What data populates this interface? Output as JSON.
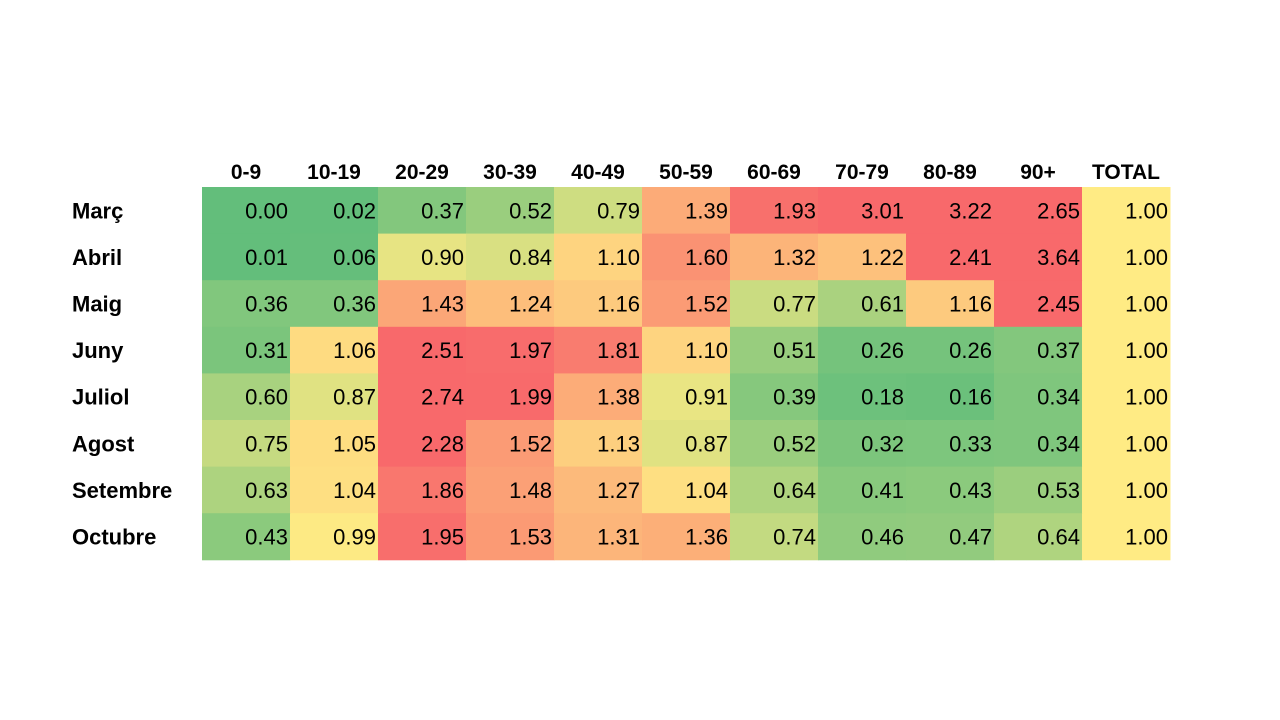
{
  "chart_data": {
    "type": "heatmap",
    "columns": [
      "0-9",
      "10-19",
      "20-29",
      "30-39",
      "40-49",
      "50-59",
      "60-69",
      "70-79",
      "80-89",
      "90+",
      "TOTAL"
    ],
    "rows": [
      "Març",
      "Abril",
      "Maig",
      "Juny",
      "Juliol",
      "Agost",
      "Setembre",
      "Octubre"
    ],
    "values": [
      [
        "0.00",
        "0.02",
        "0.37",
        "0.52",
        "0.79",
        "1.39",
        "1.93",
        "3.01",
        "3.22",
        "2.65",
        "1.00"
      ],
      [
        "0.01",
        "0.06",
        "0.90",
        "0.84",
        "1.10",
        "1.60",
        "1.32",
        "1.22",
        "2.41",
        "3.64",
        "1.00"
      ],
      [
        "0.36",
        "0.36",
        "1.43",
        "1.24",
        "1.16",
        "1.52",
        "0.77",
        "0.61",
        "1.16",
        "2.45",
        "1.00"
      ],
      [
        "0.31",
        "1.06",
        "2.51",
        "1.97",
        "1.81",
        "1.10",
        "0.51",
        "0.26",
        "0.26",
        "0.37",
        "1.00"
      ],
      [
        "0.60",
        "0.87",
        "2.74",
        "1.99",
        "1.38",
        "0.91",
        "0.39",
        "0.18",
        "0.16",
        "0.34",
        "1.00"
      ],
      [
        "0.75",
        "1.05",
        "2.28",
        "1.52",
        "1.13",
        "0.87",
        "0.52",
        "0.32",
        "0.33",
        "0.34",
        "1.00"
      ],
      [
        "0.63",
        "1.04",
        "1.86",
        "1.48",
        "1.27",
        "1.04",
        "0.64",
        "0.41",
        "0.43",
        "0.53",
        "1.00"
      ],
      [
        "0.43",
        "0.99",
        "1.95",
        "1.53",
        "1.31",
        "1.36",
        "0.74",
        "0.46",
        "0.47",
        "0.64",
        "1.00"
      ]
    ],
    "color_scale": {
      "low": "#63be7b",
      "mid": "#ffeb84",
      "high": "#f8696b",
      "low_value": 0.0,
      "mid_value": 1.0,
      "high_value": 2.0
    },
    "total_column_color": "#ffeb84"
  }
}
